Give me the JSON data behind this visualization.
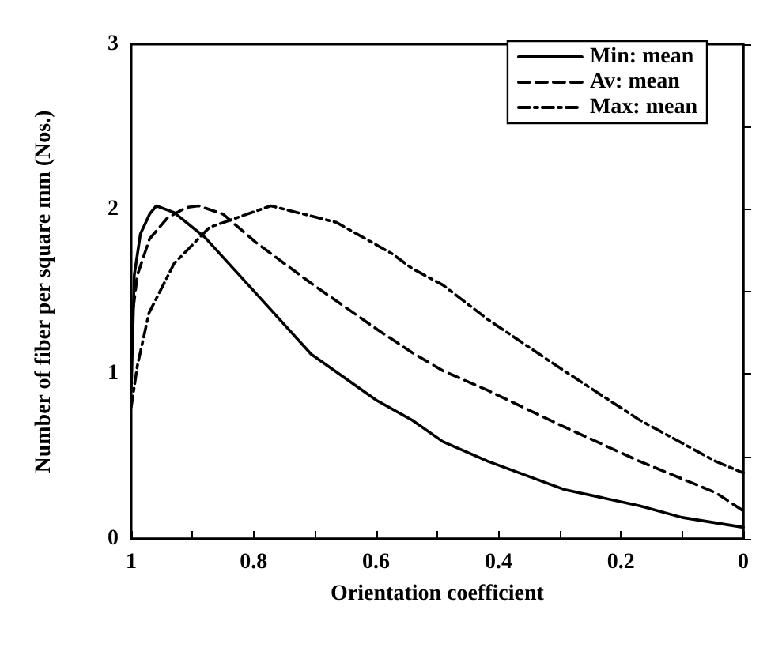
{
  "chart_data": {
    "type": "line",
    "xlabel": "Orientation coefficient",
    "ylabel": "Number of fiber per square mm (Nos.)",
    "xlim": [
      1,
      0
    ],
    "ylim": [
      0,
      3
    ],
    "xticks": [
      1,
      {
        "value": 0.9,
        "label": null
      },
      0.8,
      {
        "value": 0.7,
        "label": null
      },
      0.6,
      {
        "value": 0.5,
        "label": null
      },
      0.4,
      {
        "value": 0.3,
        "label": null
      },
      0.2,
      {
        "value": 0.1,
        "label": null
      },
      0
    ],
    "yticks": [
      0,
      {
        "value": 0.5,
        "label": null
      },
      1,
      {
        "value": 1.5,
        "label": null
      },
      2,
      {
        "value": 2.5,
        "label": null
      },
      3
    ],
    "grid": false,
    "legend": "top right",
    "marker": "none",
    "series": [
      {
        "name": "Min: mean",
        "color": "#000000",
        "line_style": "solid",
        "x": [
          1,
          0.995,
          0.985,
          0.97,
          0.959,
          0.93,
          0.88,
          0.789,
          0.706,
          0.599,
          0.541,
          0.491,
          0.417,
          0.293,
          0.169,
          0.1,
          0
        ],
        "values": [
          0.9,
          1.6,
          1.85,
          1.97,
          2.02,
          1.98,
          1.83,
          1.46,
          1.12,
          0.84,
          0.72,
          0.59,
          0.47,
          0.3,
          0.2,
          0.13,
          0.07
        ]
      },
      {
        "name": "Av: mean",
        "color": "#000000",
        "line_style": "dashed",
        "x": [
          1,
          0.99,
          0.97,
          0.94,
          0.91,
          0.89,
          0.85,
          0.797,
          0.706,
          0.598,
          0.541,
          0.491,
          0.417,
          0.293,
          0.169,
          0.045,
          0
        ],
        "values": [
          1.3,
          1.6,
          1.82,
          1.95,
          2.01,
          2.02,
          1.97,
          1.8,
          1.55,
          1.27,
          1.13,
          1.02,
          0.9,
          0.68,
          0.47,
          0.28,
          0.17
        ]
      },
      {
        "name": "Max: mean",
        "color": "#000000",
        "line_style": "dashdot",
        "x": [
          1,
          0.99,
          0.971,
          0.93,
          0.872,
          0.772,
          0.665,
          0.574,
          0.541,
          0.491,
          0.417,
          0.293,
          0.169,
          0.045,
          0
        ],
        "values": [
          0.8,
          1.05,
          1.37,
          1.67,
          1.89,
          2.02,
          1.92,
          1.73,
          1.64,
          1.54,
          1.33,
          1.02,
          0.72,
          0.47,
          0.4
        ]
      }
    ]
  }
}
